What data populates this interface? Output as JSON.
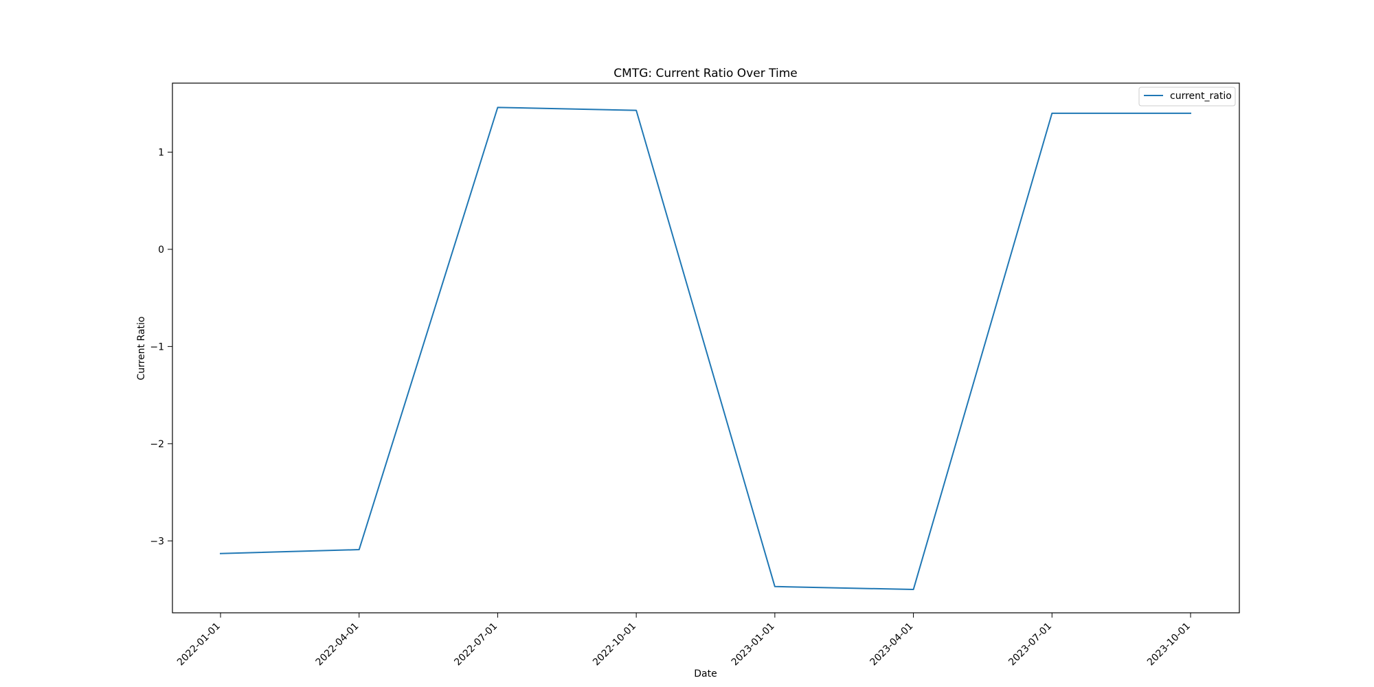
{
  "chart_data": {
    "type": "line",
    "title": "CMTG: Current Ratio Over Time",
    "xlabel": "Date",
    "ylabel": "Current Ratio",
    "x": [
      "2022-01-01",
      "2022-04-01",
      "2022-07-01",
      "2022-10-01",
      "2023-01-01",
      "2023-04-01",
      "2023-07-01",
      "2023-10-01"
    ],
    "series": [
      {
        "name": "current_ratio",
        "color": "#1f77b4",
        "values": [
          -3.13,
          -3.09,
          1.46,
          1.43,
          -3.47,
          -3.5,
          1.4,
          1.4
        ]
      }
    ],
    "ylim": [
      -3.74,
      1.71
    ],
    "yticks": [
      -3,
      -2,
      -1,
      0,
      1
    ],
    "ytick_labels": [
      "−3",
      "−2",
      "−1",
      "0",
      "1"
    ],
    "xtick_labels": [
      "2022-01-01",
      "2022-04-01",
      "2022-07-01",
      "2022-10-01",
      "2023-01-01",
      "2023-04-01",
      "2023-07-01",
      "2023-10-01"
    ],
    "grid": false,
    "legend_position": "top-right"
  }
}
